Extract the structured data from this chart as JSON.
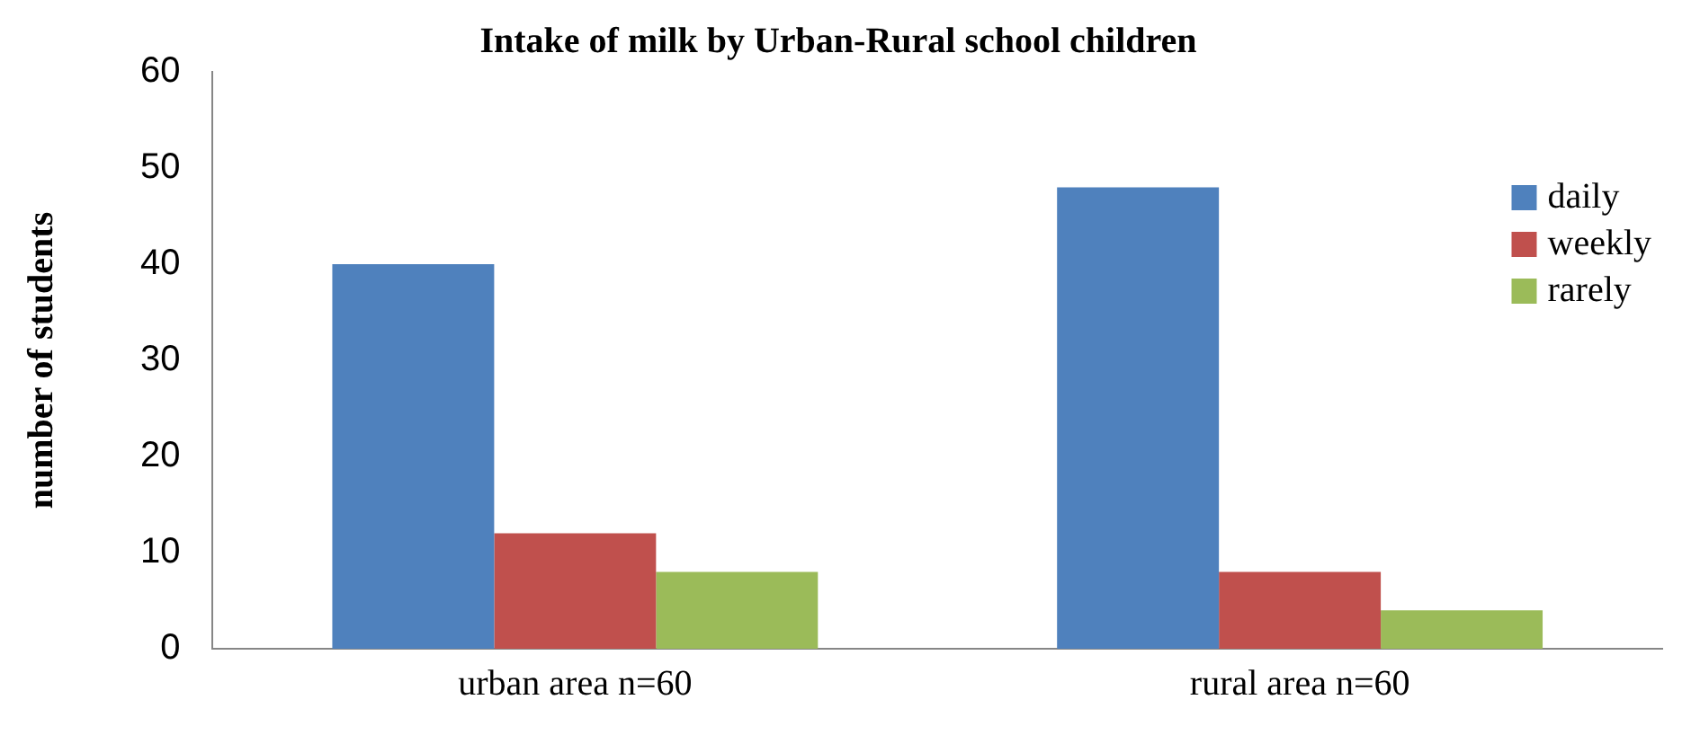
{
  "chart_data": {
    "type": "bar",
    "title": "Intake of milk by Urban-Rural school children",
    "ylabel": "number of students",
    "categories": [
      "urban area n=60",
      "rural area n=60"
    ],
    "series": [
      {
        "name": "daily",
        "color": "#4f81bd",
        "values": [
          40,
          48
        ]
      },
      {
        "name": "weekly",
        "color": "#c0504d",
        "values": [
          12,
          8
        ]
      },
      {
        "name": "rarely",
        "color": "#9bbb59",
        "values": [
          8,
          4
        ]
      }
    ],
    "ylim": [
      0,
      60
    ],
    "yticks": [
      0,
      10,
      20,
      30,
      40,
      50,
      60
    ],
    "grid": false,
    "legend": "top right"
  }
}
